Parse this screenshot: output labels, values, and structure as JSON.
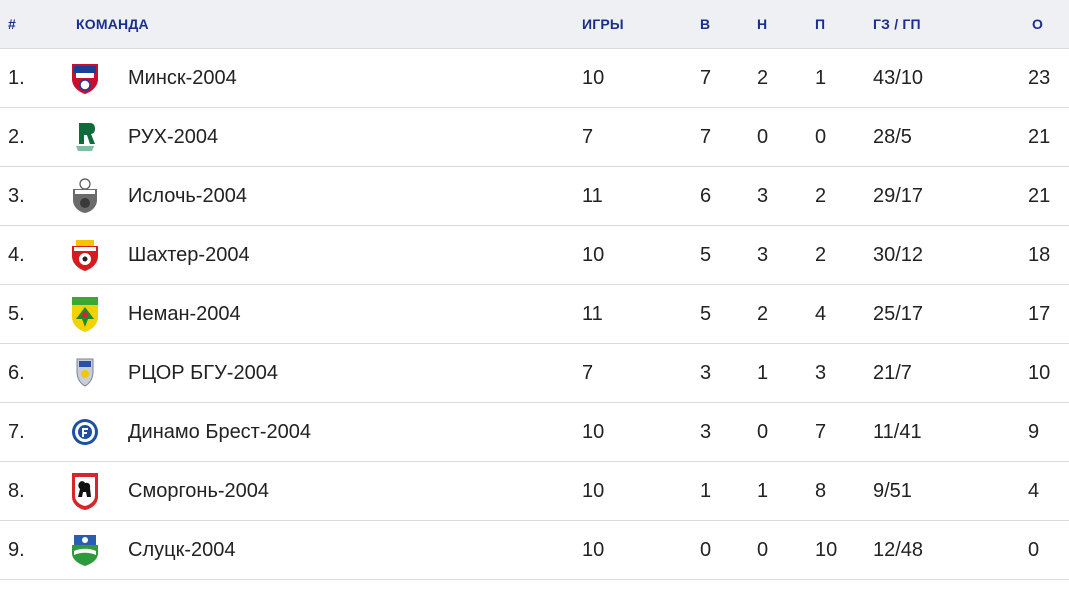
{
  "columns": {
    "pos": "#",
    "team": "КОМАНДА",
    "games": "ИГРЫ",
    "wins": "В",
    "draws": "Н",
    "losses": "П",
    "goals": "ГЗ / ГП",
    "points": "О"
  },
  "rows": [
    {
      "pos": "1.",
      "team": "Минск-2004",
      "logo": "minsk-crest-icon",
      "games": "10",
      "wins": "7",
      "draws": "2",
      "losses": "1",
      "goals": "43/10",
      "points": "23"
    },
    {
      "pos": "2.",
      "team": "РУХ-2004",
      "logo": "rukh-crest-icon",
      "games": "7",
      "wins": "7",
      "draws": "0",
      "losses": "0",
      "goals": "28/5",
      "points": "21"
    },
    {
      "pos": "3.",
      "team": "Ислочь-2004",
      "logo": "isloch-crest-icon",
      "games": "11",
      "wins": "6",
      "draws": "3",
      "losses": "2",
      "goals": "29/17",
      "points": "21"
    },
    {
      "pos": "4.",
      "team": "Шахтер-2004",
      "logo": "shakhter-crest-icon",
      "games": "10",
      "wins": "5",
      "draws": "3",
      "losses": "2",
      "goals": "30/12",
      "points": "18"
    },
    {
      "pos": "5.",
      "team": "Неман-2004",
      "logo": "neman-crest-icon",
      "games": "11",
      "wins": "5",
      "draws": "2",
      "losses": "4",
      "goals": "25/17",
      "points": "17"
    },
    {
      "pos": "6.",
      "team": "РЦОР БГУ-2004",
      "logo": "rcor-bgu-crest-icon",
      "games": "7",
      "wins": "3",
      "draws": "1",
      "losses": "3",
      "goals": "21/7",
      "points": "10"
    },
    {
      "pos": "7.",
      "team": "Динамо Брест-2004",
      "logo": "dinamo-brest-crest-icon",
      "games": "10",
      "wins": "3",
      "draws": "0",
      "losses": "7",
      "goals": "11/41",
      "points": "9"
    },
    {
      "pos": "8.",
      "team": "Сморгонь-2004",
      "logo": "smorgon-crest-icon",
      "games": "10",
      "wins": "1",
      "draws": "1",
      "losses": "8",
      "goals": "9/51",
      "points": "4"
    },
    {
      "pos": "9.",
      "team": "Слуцк-2004",
      "logo": "slutsk-crest-icon",
      "games": "10",
      "wins": "0",
      "draws": "0",
      "losses": "10",
      "goals": "12/48",
      "points": "0"
    }
  ]
}
